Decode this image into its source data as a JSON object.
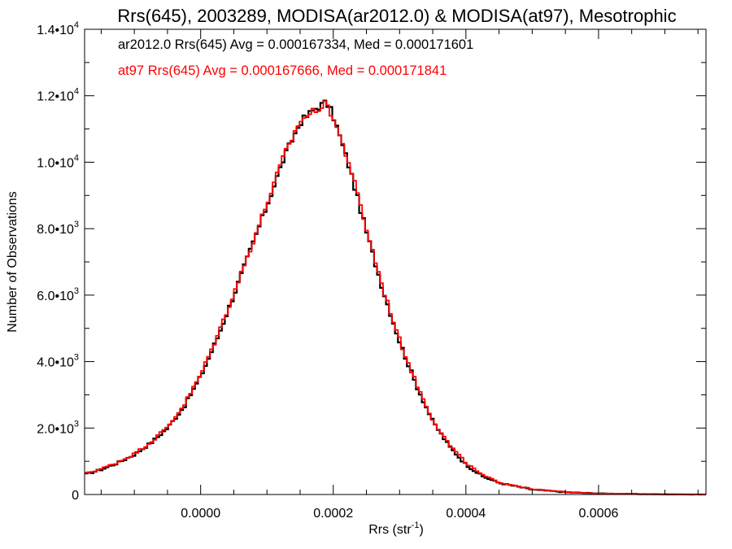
{
  "chart_data": {
    "type": "line",
    "title": "Rrs(645), 2003289, MODISA(ar2012.0) & MODISA(at97), Mesotrophic",
    "xlabel": "Rrs (str",
    "xlabel_sup": "-1",
    "xlabel_end": ")",
    "ylabel": "Number of Observations",
    "xlim": [
      -0.000175,
      0.000762
    ],
    "ylim": [
      0,
      14000
    ],
    "grid": false,
    "x_ticks": [
      {
        "value": 0.0,
        "label": "0.0000"
      },
      {
        "value": 0.0002,
        "label": "0.0002"
      },
      {
        "value": 0.0004,
        "label": "0.0004"
      },
      {
        "value": 0.0006,
        "label": "0.0006"
      }
    ],
    "y_ticks": [
      {
        "value": 0,
        "mant": "0",
        "exp": ""
      },
      {
        "value": 2000,
        "mant": "2.0•10",
        "exp": "3"
      },
      {
        "value": 4000,
        "mant": "4.0•10",
        "exp": "3"
      },
      {
        "value": 6000,
        "mant": "6.0•10",
        "exp": "3"
      },
      {
        "value": 8000,
        "mant": "8.0•10",
        "exp": "3"
      },
      {
        "value": 10000,
        "mant": "1.0•10",
        "exp": "4"
      },
      {
        "value": 12000,
        "mant": "1.2•10",
        "exp": "4"
      },
      {
        "value": 14000,
        "mant": "1.4•10",
        "exp": "4"
      }
    ],
    "annotations": [
      {
        "text": "ar2012.0 Rrs(645) Avg = 0.000167334, Med = 0.000171601",
        "color": "#000000"
      },
      {
        "text": "at97 Rrs(645) Avg = 0.000167666, Med = 0.000171841",
        "color": "#ff0000"
      }
    ],
    "series": [
      {
        "color": "#000000",
        "x": [
          -0.000175,
          -0.00015,
          -0.000125,
          -0.0001,
          -7.5e-05,
          -5e-05,
          -2.5e-05,
          0.0,
          2.5e-05,
          5e-05,
          7.5e-05,
          0.0001,
          0.000125,
          0.00015,
          0.000175,
          0.00019,
          0.0002,
          0.000225,
          0.00025,
          0.000275,
          0.0003,
          0.000325,
          0.00035,
          0.000375,
          0.0004,
          0.000425,
          0.00045,
          0.0005,
          0.00055,
          0.0006,
          0.00065,
          0.0007,
          0.000762
        ],
        "y": [
          600,
          750,
          950,
          1200,
          1550,
          2000,
          2650,
          3550,
          4700,
          6000,
          7350,
          8700,
          10100,
          11200,
          11650,
          11800,
          11400,
          9800,
          7900,
          6150,
          4600,
          3300,
          2200,
          1450,
          900,
          550,
          350,
          150,
          70,
          30,
          15,
          5,
          0
        ]
      },
      {
        "color": "#ff0000",
        "x": [
          -0.000175,
          -0.00015,
          -0.000125,
          -0.0001,
          -7.5e-05,
          -5e-05,
          -2.5e-05,
          0.0,
          2.5e-05,
          5e-05,
          7.5e-05,
          0.0001,
          0.000125,
          0.00015,
          0.000175,
          0.00019,
          0.0002,
          0.000225,
          0.00025,
          0.000275,
          0.0003,
          0.000325,
          0.00035,
          0.000375,
          0.0004,
          0.000425,
          0.00045,
          0.0005,
          0.00055,
          0.0006,
          0.00065,
          0.0007,
          0.000762
        ],
        "y": [
          620,
          770,
          970,
          1220,
          1580,
          2030,
          2700,
          3600,
          4760,
          6050,
          7400,
          8750,
          10150,
          11250,
          11600,
          11750,
          11350,
          9900,
          8000,
          6200,
          4650,
          3350,
          2250,
          1500,
          950,
          580,
          370,
          160,
          75,
          32,
          16,
          6,
          0
        ]
      }
    ]
  }
}
